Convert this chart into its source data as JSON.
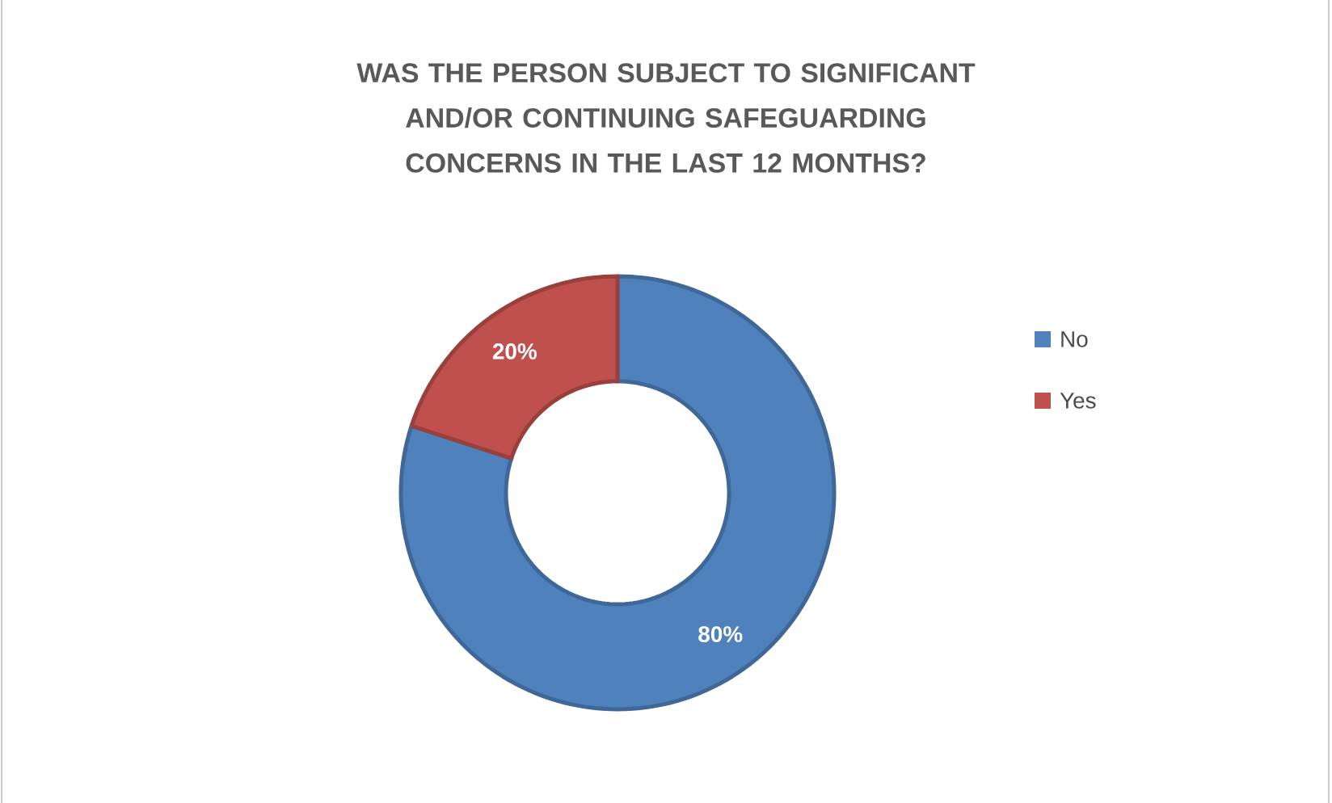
{
  "chart_data": {
    "type": "donut",
    "title": "WAS THE PERSON SUBJECT TO SIGNIFICANT AND/OR CONTINUING SAFEGUARDING CONCERNS IN THE LAST 12 MONTHS?",
    "categories": [
      "No",
      "Yes"
    ],
    "values": [
      80,
      20
    ],
    "colors": [
      "#4f81bd",
      "#c0504d"
    ],
    "value_labels": [
      "80%",
      "20%"
    ],
    "legend": "right"
  }
}
